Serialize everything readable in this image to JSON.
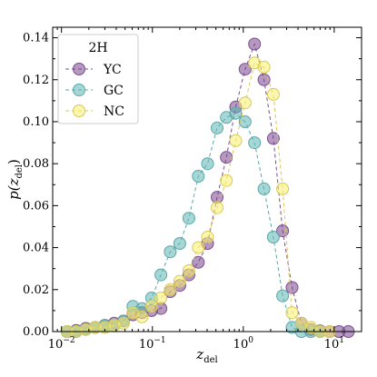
{
  "chart_data": {
    "type": "line",
    "xscale": "log",
    "xlim": [
      0.008,
      20
    ],
    "ylim": [
      0,
      0.145
    ],
    "xticks": [
      {
        "value": 0.01,
        "base": "10",
        "exp": "−2"
      },
      {
        "value": 0.1,
        "base": "10",
        "exp": "−1"
      },
      {
        "value": 1,
        "base": "10",
        "exp": "0"
      },
      {
        "value": 10,
        "base": "10",
        "exp": "1"
      }
    ],
    "yticks": [
      "0.00",
      "0.02",
      "0.04",
      "0.06",
      "0.08",
      "0.10",
      "0.12",
      "0.14"
    ],
    "xlabel": {
      "main": "z",
      "sub": "del"
    },
    "ylabel": {
      "main": "p(z",
      "sub": "del",
      "close": ")"
    },
    "legend": {
      "title": "2H",
      "position": "upper-left"
    },
    "grid": false,
    "series": [
      {
        "name": "YC",
        "color": "#7b4f8e",
        "fill": "rgba(120,70,140,0.55)",
        "x": [
          0.0115,
          0.0145,
          0.0185,
          0.0235,
          0.03,
          0.038,
          0.048,
          0.061,
          0.077,
          0.098,
          0.124,
          0.157,
          0.2,
          0.252,
          0.32,
          0.405,
          0.515,
          0.652,
          0.826,
          1.047,
          1.33,
          1.69,
          2.14,
          2.71,
          3.44,
          4.36,
          5.53,
          7.0,
          8.9,
          11.3,
          14.3
        ],
        "y": [
          0.0,
          0.0005,
          0.0015,
          0.002,
          0.003,
          0.004,
          0.005,
          0.008,
          0.009,
          0.01,
          0.011,
          0.019,
          0.022,
          0.027,
          0.033,
          0.042,
          0.064,
          0.083,
          0.107,
          0.125,
          0.137,
          0.12,
          0.092,
          0.048,
          0.021,
          0.004,
          0.001,
          0.0003,
          0.0,
          0.0,
          0.0
        ]
      },
      {
        "name": "GC",
        "color": "#5aa8a8",
        "fill": "rgba(95,180,180,0.55)",
        "x": [
          0.0115,
          0.0145,
          0.0185,
          0.0235,
          0.03,
          0.038,
          0.048,
          0.061,
          0.077,
          0.098,
          0.124,
          0.157,
          0.2,
          0.252,
          0.32,
          0.405,
          0.515,
          0.652,
          0.826,
          1.047,
          1.33,
          1.69,
          2.14,
          2.71,
          3.44,
          4.36,
          5.53,
          7.0
        ],
        "y": [
          0.0,
          0.0,
          0.001,
          0.002,
          0.003,
          0.003,
          0.005,
          0.012,
          0.011,
          0.016,
          0.027,
          0.038,
          0.042,
          0.054,
          0.074,
          0.08,
          0.097,
          0.102,
          0.104,
          0.1,
          0.09,
          0.068,
          0.045,
          0.017,
          0.002,
          0.0,
          0.0,
          0.0
        ]
      },
      {
        "name": "NC",
        "color": "#d9c85a",
        "fill": "rgba(250,240,110,0.55)",
        "x": [
          0.0115,
          0.0145,
          0.0185,
          0.0235,
          0.03,
          0.038,
          0.048,
          0.061,
          0.077,
          0.098,
          0.124,
          0.157,
          0.2,
          0.252,
          0.32,
          0.405,
          0.515,
          0.652,
          0.826,
          1.047,
          1.33,
          1.69,
          2.14,
          2.71,
          3.44,
          4.36,
          5.53,
          7.0,
          8.9
        ],
        "y": [
          0.0,
          0.0,
          0.001,
          0.002,
          0.002,
          0.003,
          0.004,
          0.009,
          0.007,
          0.012,
          0.016,
          0.02,
          0.024,
          0.029,
          0.04,
          0.045,
          0.059,
          0.072,
          0.091,
          0.109,
          0.128,
          0.126,
          0.113,
          0.068,
          0.009,
          0.004,
          0.002,
          0.0,
          0.0
        ]
      }
    ]
  }
}
